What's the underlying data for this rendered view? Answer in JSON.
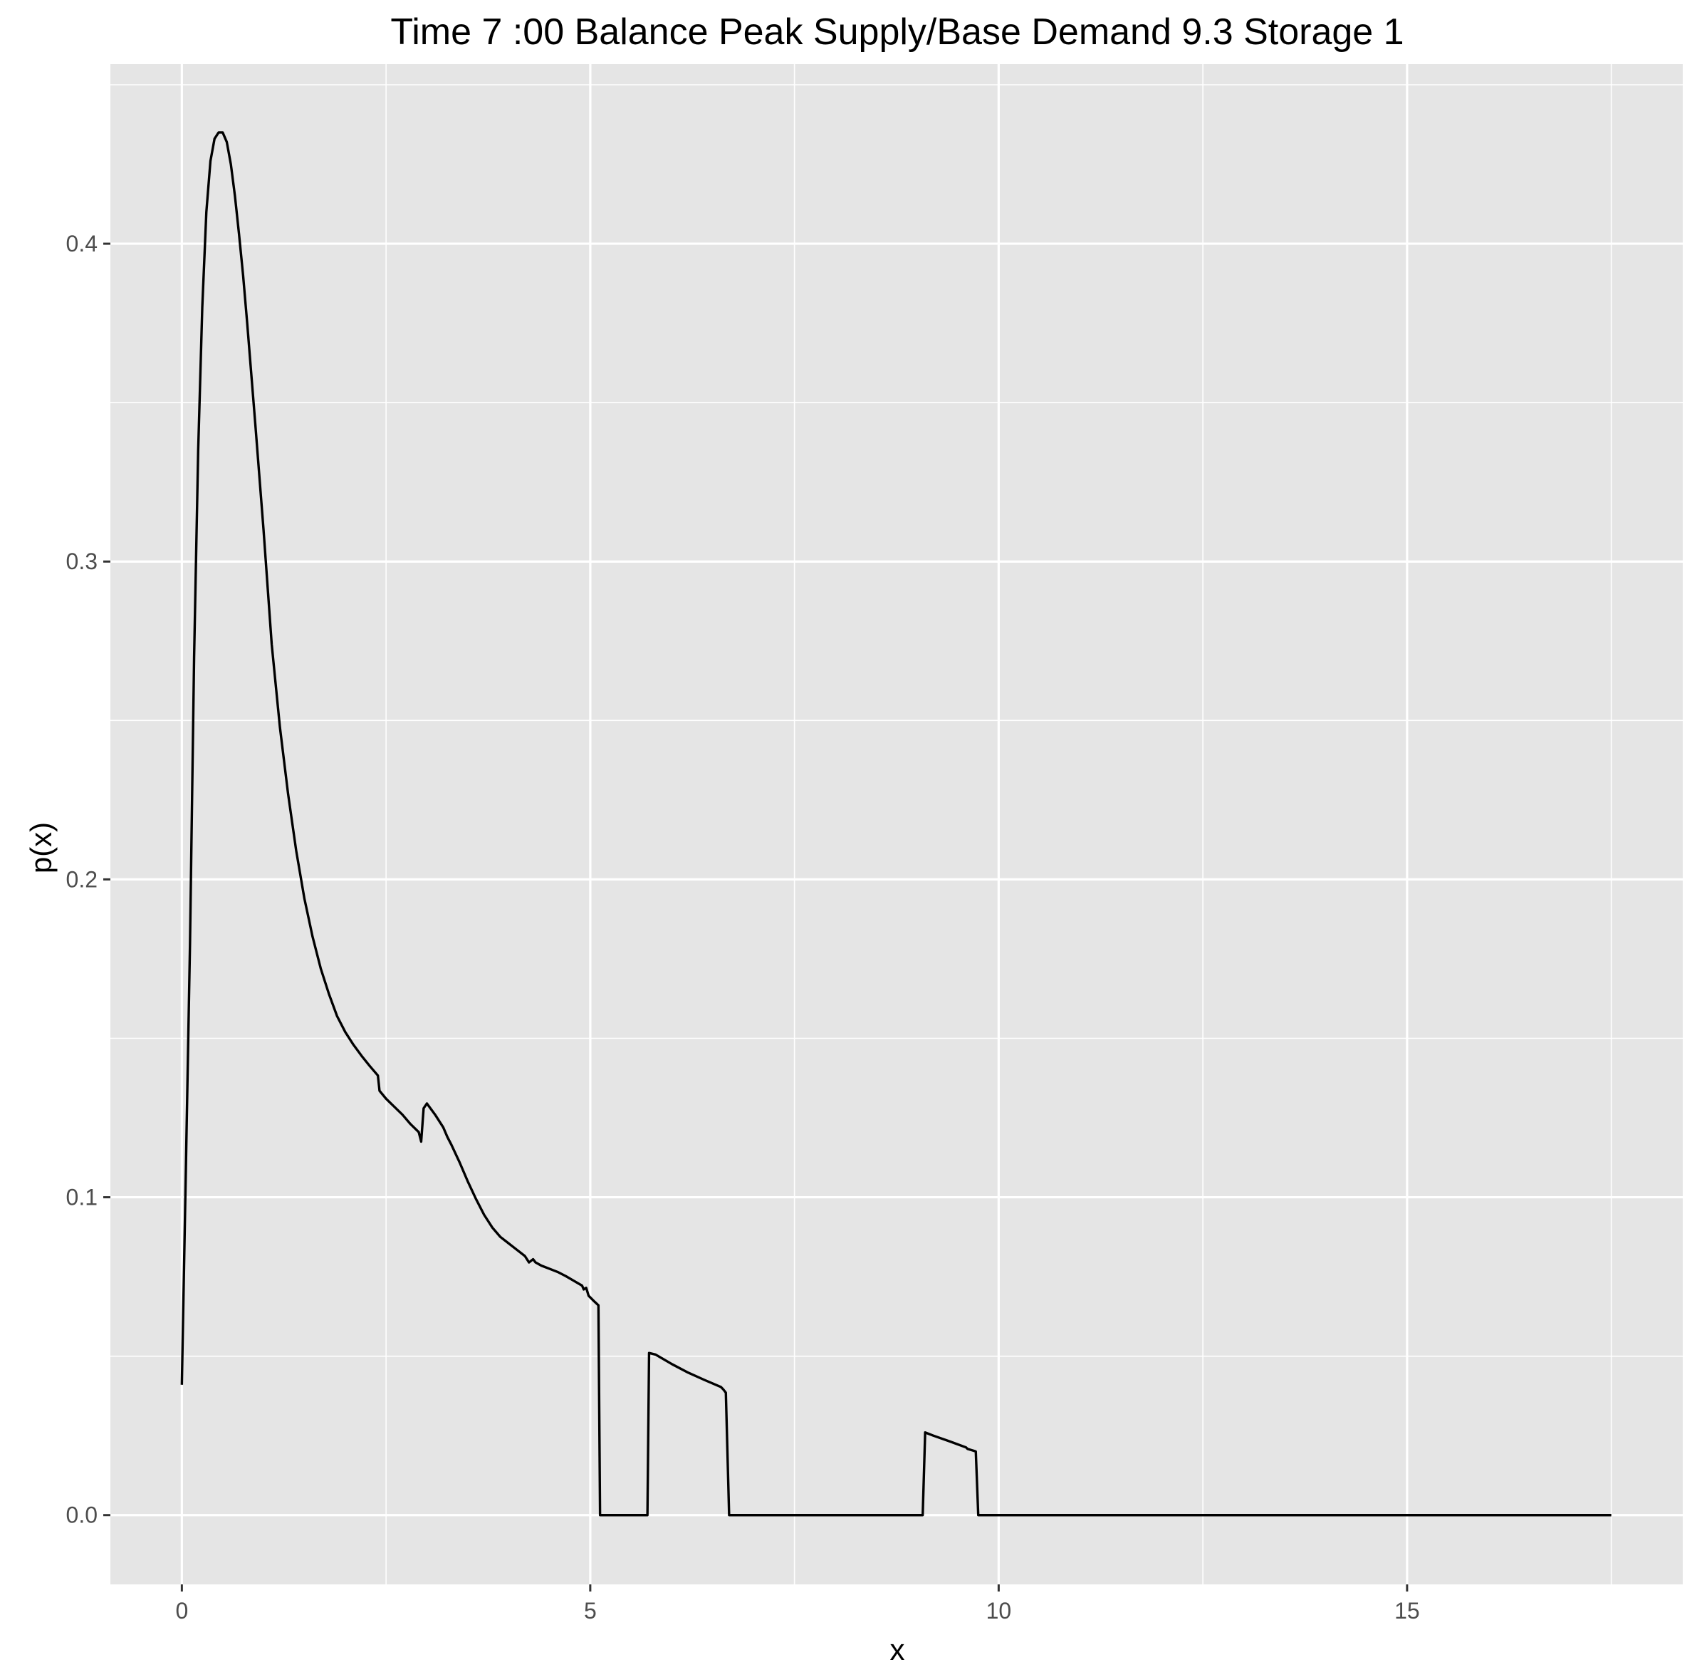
{
  "chart_data": {
    "type": "line",
    "title": "Time  7 :00  Balance   Peak Supply/Base Demand  9.3 Storage 1",
    "xlabel": "x",
    "ylabel": "p(x)",
    "xlim": [
      -0.875,
      18.375
    ],
    "ylim": [
      -0.0218,
      0.4565
    ],
    "x_ticks": [
      0,
      5,
      10,
      15
    ],
    "x_tick_labels": [
      "0",
      "5",
      "10",
      "15"
    ],
    "y_ticks": [
      0.0,
      0.1,
      0.2,
      0.3,
      0.4
    ],
    "y_tick_labels": [
      "0.0",
      "0.1",
      "0.2",
      "0.3",
      "0.4"
    ],
    "grid": true,
    "background": "#e5e5e5",
    "grid_color": "#ffffff",
    "line_color": "#000000",
    "series": [
      {
        "x": [
          0,
          0.05,
          0.1,
          0.15,
          0.2,
          0.25,
          0.3,
          0.35,
          0.4,
          0.45,
          0.5,
          0.55,
          0.6,
          0.65,
          0.7,
          0.75,
          0.8,
          0.9,
          1.0,
          1.1,
          1.2,
          1.3,
          1.4,
          1.5,
          1.6,
          1.7,
          1.8,
          1.9,
          2.0,
          2.1,
          2.2,
          2.3,
          2.4,
          2.42,
          2.5,
          2.6,
          2.7,
          2.8,
          2.9,
          2.93,
          2.96,
          3.0,
          3.1,
          3.2,
          3.25,
          3.3,
          3.4,
          3.5,
          3.6,
          3.7,
          3.8,
          3.9,
          4.0,
          4.1,
          4.2,
          4.25,
          4.3,
          4.33,
          4.4,
          4.5,
          4.6,
          4.7,
          4.8,
          4.9,
          4.92,
          4.95,
          4.98,
          5.05,
          5.1,
          5.12,
          5.14,
          5.2,
          5.5,
          5.67,
          5.7,
          5.72,
          5.8,
          6.0,
          6.2,
          6.4,
          6.6,
          6.63,
          6.66,
          6.7,
          7.0,
          8.0,
          9.05,
          9.07,
          9.1,
          9.2,
          9.4,
          9.6,
          9.62,
          9.7,
          9.72,
          9.75,
          10.0,
          12.0,
          15.0,
          17.5
        ],
        "y": [
          0.041,
          0.11,
          0.18,
          0.27,
          0.335,
          0.38,
          0.41,
          0.426,
          0.433,
          0.435,
          0.435,
          0.432,
          0.425,
          0.415,
          0.403,
          0.39,
          0.375,
          0.343,
          0.31,
          0.274,
          0.248,
          0.227,
          0.209,
          0.194,
          0.182,
          0.172,
          0.164,
          0.157,
          0.152,
          0.148,
          0.1445,
          0.1413,
          0.1383,
          0.1335,
          0.131,
          0.1285,
          0.126,
          0.123,
          0.1205,
          0.1175,
          0.128,
          0.1295,
          0.126,
          0.122,
          0.119,
          0.1165,
          0.111,
          0.105,
          0.0995,
          0.0945,
          0.0905,
          0.0875,
          0.0855,
          0.0835,
          0.0815,
          0.0795,
          0.0805,
          0.0795,
          0.0785,
          0.0775,
          0.0765,
          0.0752,
          0.0737,
          0.0722,
          0.071,
          0.0715,
          0.069,
          0.0672,
          0.066,
          0.0,
          0.0,
          0.0,
          0.0,
          0.0,
          0.0,
          0.051,
          0.0505,
          0.0475,
          0.0448,
          0.0425,
          0.0403,
          0.0395,
          0.0385,
          0.0,
          0.0,
          0.0,
          0.0,
          0.0,
          0.026,
          0.025,
          0.0232,
          0.0213,
          0.0208,
          0.0202,
          0.02,
          0.0,
          0.0,
          0.0,
          0.0,
          0.0
        ]
      }
    ]
  }
}
